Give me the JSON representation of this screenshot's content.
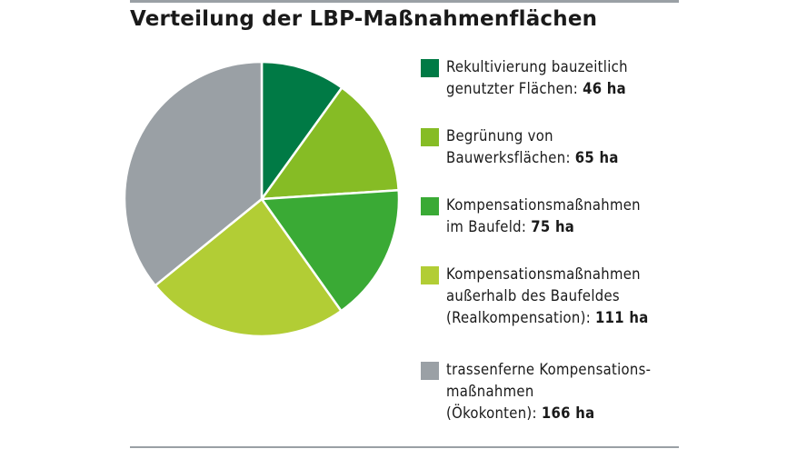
{
  "chart_data": {
    "type": "pie",
    "title": "Verteilung der LBP-Maßnahmenflächen",
    "slices": [
      {
        "label_lines": [
          "Rekultivierung bauzeitlich",
          "genutzter Flächen:"
        ],
        "value": 46,
        "value_label": "46 ha",
        "color": "#007a45"
      },
      {
        "label_lines": [
          "Begrünung von",
          "Bauwerksflächen:"
        ],
        "value": 65,
        "value_label": "65 ha",
        "color": "#86bc25"
      },
      {
        "label_lines": [
          "Kompensationsmaßnahmen",
          "im Baufeld:"
        ],
        "value": 75,
        "value_label": "75 ha",
        "color": "#3aaa35"
      },
      {
        "label_lines": [
          "Kompensationsmaßnahmen",
          "außerhalb des Baufeldes",
          "(Realkompensation):"
        ],
        "value": 111,
        "value_label": "111 ha",
        "color": "#b2cd35"
      },
      {
        "label_lines": [
          "trassenferne Kompensations-",
          "maßnahmen",
          "(Ökokonten):"
        ],
        "value": 166,
        "value_label": "166 ha",
        "color": "#9aa0a5"
      }
    ],
    "start_angle": "12 o'clock",
    "direction": "clockwise",
    "legend_position": "right"
  }
}
